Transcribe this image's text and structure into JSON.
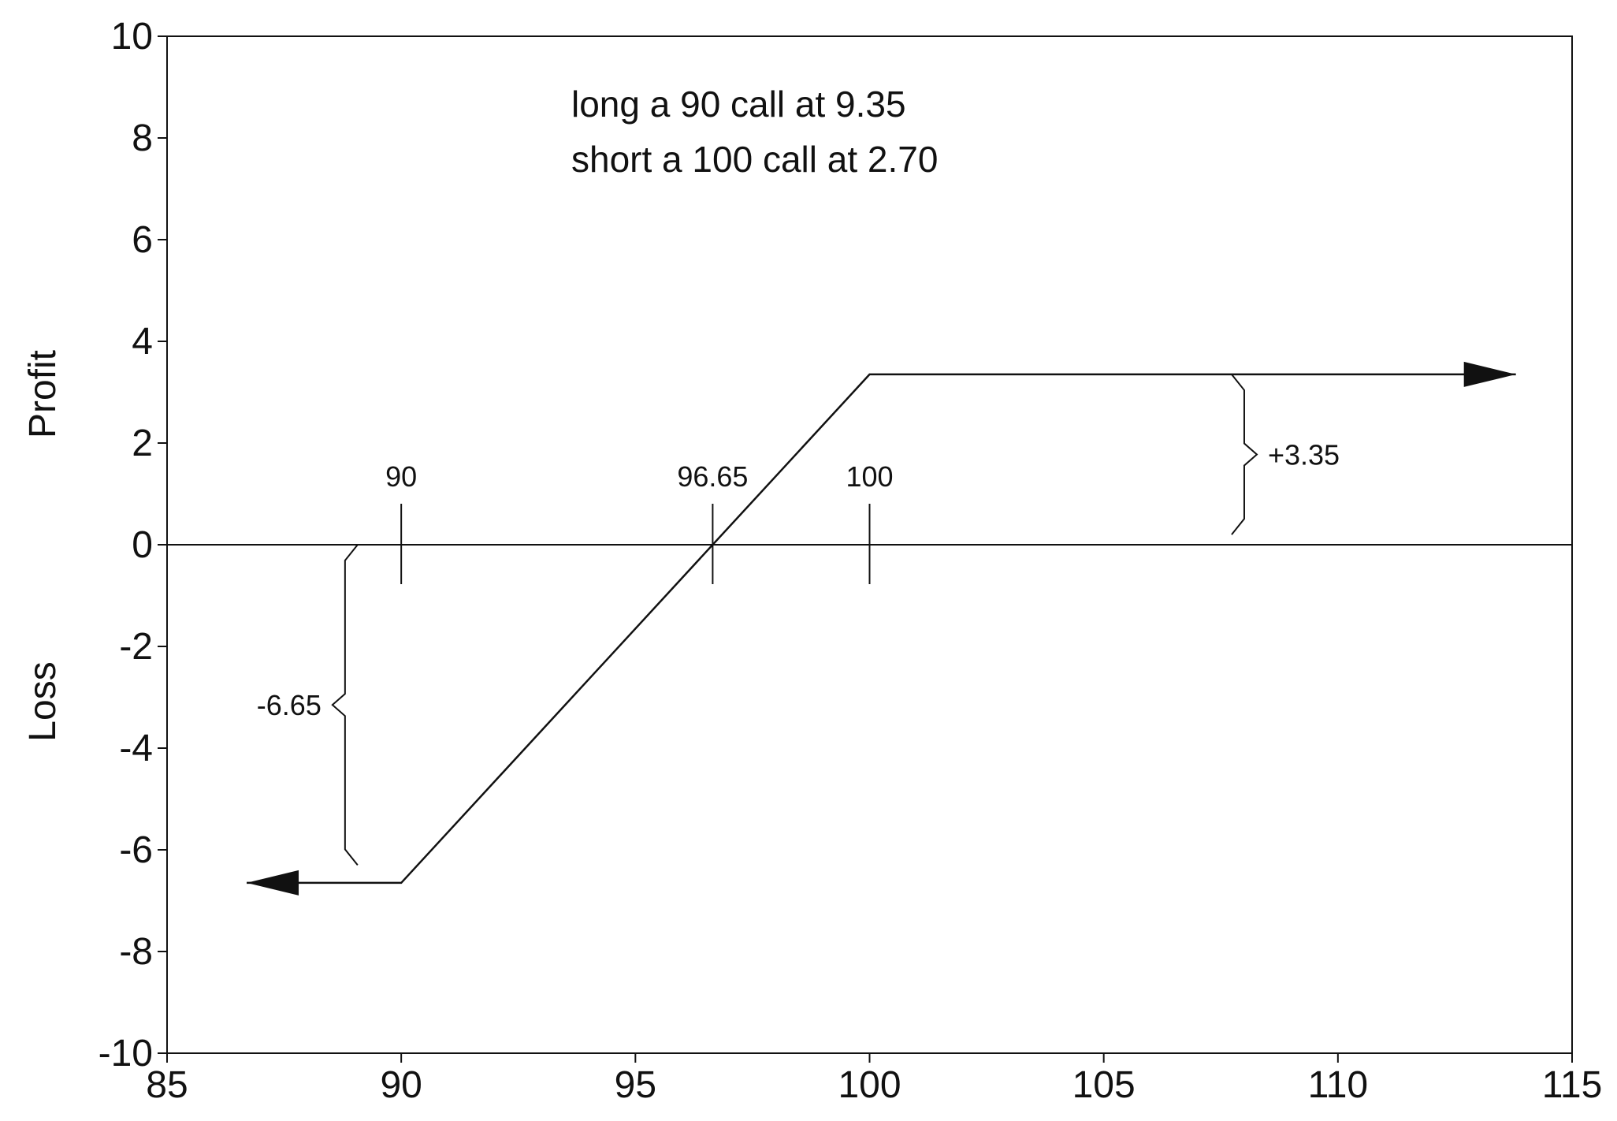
{
  "chart_data": {
    "type": "line",
    "title": "",
    "xlabel": "",
    "ylabel": "",
    "ylabel_upper": "Profit",
    "ylabel_lower": "Loss",
    "xlim": [
      85,
      115
    ],
    "ylim": [
      -10,
      10
    ],
    "grid": false,
    "xticks": [
      85,
      90,
      95,
      100,
      105,
      110,
      115
    ],
    "yticks": [
      10,
      8,
      6,
      4,
      2,
      0,
      -2,
      -4,
      -6,
      -8,
      -10
    ],
    "series": [
      {
        "x": [
          86.7,
          90,
          100,
          113.8
        ],
        "y": [
          -6.65,
          -6.65,
          3.35,
          3.35
        ],
        "color": "#111111",
        "arrow_left": true,
        "arrow_right": true
      }
    ],
    "annotations": {
      "text_lines": [
        "long a 90 call at 9.35",
        "short a 100 call at 2.70"
      ],
      "markers": [
        {
          "x": 90,
          "label": "90"
        },
        {
          "x": 96.65,
          "label": "96.65"
        },
        {
          "x": 100,
          "label": "100"
        }
      ],
      "braces": [
        {
          "label": "+3.35",
          "x": 108,
          "from": 0.2,
          "to": 3.35
        },
        {
          "label": "-6.65",
          "x": 88.8,
          "from": -6.3,
          "to": 0
        }
      ]
    }
  }
}
